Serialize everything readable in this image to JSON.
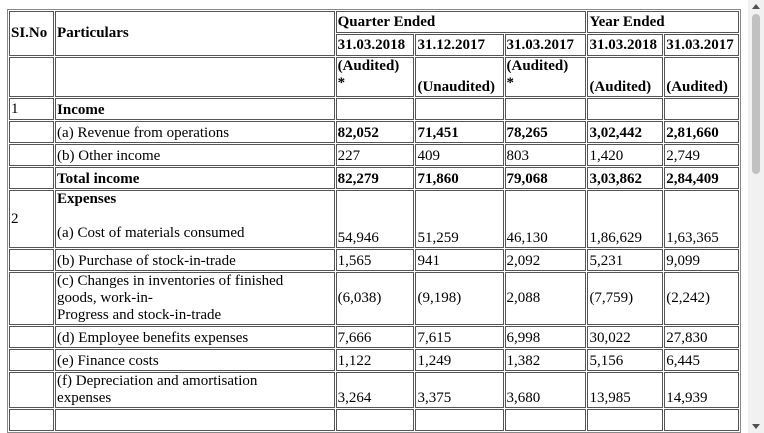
{
  "header": {
    "sl_no": "SI.No",
    "particulars": "Particulars",
    "quarter_ended": "Quarter Ended",
    "year_ended": "Year Ended",
    "dates": [
      "31.03.2018",
      "31.12.2017",
      "31.03.2017",
      "31.03.2018",
      "31.03.2017"
    ],
    "audit": [
      "(Audited)\n*",
      "(Unaudited)",
      "(Audited)\n*",
      "(Audited)",
      "(Audited)"
    ]
  },
  "rows": [
    {
      "sl": "1",
      "label": "Income",
      "bold_label": true
    },
    {
      "label": "(a) Revenue from operations",
      "values": [
        "82,052",
        "71,451",
        "78,265",
        "3,02,442",
        "2,81,660"
      ],
      "bold_values": true
    },
    {
      "label": "(b) Other income",
      "values": [
        "227",
        "409",
        "803",
        "1,420",
        "2,749"
      ]
    },
    {
      "label": "Total income",
      "bold_label": true,
      "values": [
        "82,279",
        "71,860",
        "79,068",
        "3,03,862",
        "2,84,409"
      ],
      "bold_values": true
    },
    {
      "sl": "2",
      "heading": "Expenses",
      "label": "(a) Cost of materials consumed",
      "values": [
        "54,946",
        "51,259",
        "46,130",
        "1,86,629",
        "1,63,365"
      ]
    },
    {
      "label": "(b) Purchase of stock-in-trade",
      "values": [
        "1,565",
        "941",
        "2,092",
        "5,231",
        "9,099"
      ]
    },
    {
      "label": "(c) Changes in inventories of finished\ngoods, work-in-\nProgress and stock-in-trade",
      "values": [
        "(6,038)",
        "(9,198)",
        "2,088",
        "(7,759)",
        "(2,242)"
      ],
      "middle": true
    },
    {
      "label": "(d) Employee benefits expenses",
      "values": [
        "7,666",
        "7,615",
        "6,998",
        "30,022",
        "27,830"
      ]
    },
    {
      "label": "(e) Finance costs",
      "values": [
        "1,122",
        "1,249",
        "1,382",
        "5,156",
        "6,445"
      ]
    },
    {
      "label": "(f) Depreciation and amortisation\nexpenses",
      "values": [
        "3,264",
        "3,375",
        "3,680",
        "13,985",
        "14,939"
      ]
    }
  ]
}
